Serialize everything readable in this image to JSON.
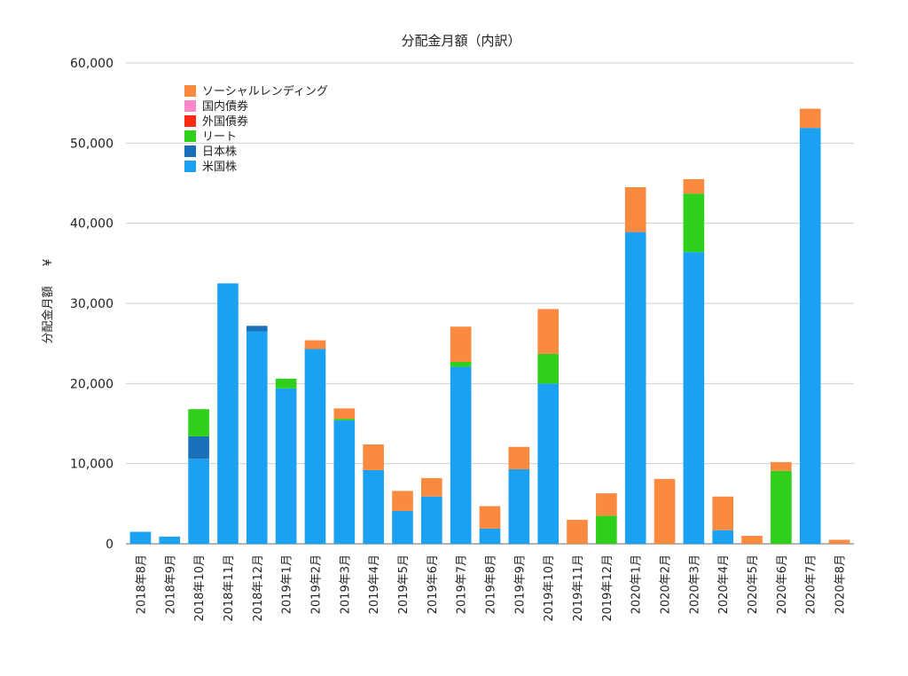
{
  "chart_data": {
    "type": "bar",
    "stacked": true,
    "title": "分配金月額（内訳）",
    "xlabel": "",
    "ylabel": "分配金月額",
    "yunit": "¥",
    "ylim": [
      0,
      60000
    ],
    "yticks": [
      "0",
      "10,000",
      "20,000",
      "30,000",
      "40,000",
      "50,000",
      "60,000"
    ],
    "ytick_values": [
      0,
      10000,
      20000,
      30000,
      40000,
      50000,
      60000
    ],
    "grid": true,
    "legend_position": "top-left",
    "categories": [
      "2018年8月",
      "2018年9月",
      "2018年10月",
      "2018年11月",
      "2018年12月",
      "2019年1月",
      "2019年2月",
      "2019年3月",
      "2019年4月",
      "2019年5月",
      "2019年6月",
      "2019年7月",
      "2019年8月",
      "2019年9月",
      "2019年10月",
      "2019年11月",
      "2019年12月",
      "2020年1月",
      "2020年2月",
      "2020年3月",
      "2020年4月",
      "2020年5月",
      "2020年6月",
      "2020年7月",
      "2020年8月"
    ],
    "series": [
      {
        "name": "米国株",
        "color": "#1ba1f2",
        "values": [
          1500,
          900,
          10600,
          32500,
          26500,
          19400,
          24300,
          15400,
          9200,
          4100,
          5900,
          22100,
          1900,
          9300,
          20000,
          0,
          0,
          38900,
          0,
          36400,
          1700,
          0,
          0,
          51900,
          0
        ]
      },
      {
        "name": "日本株",
        "color": "#1a70b8",
        "values": [
          0,
          0,
          2800,
          0,
          700,
          0,
          0,
          0,
          0,
          0,
          0,
          0,
          0,
          0,
          0,
          0,
          0,
          0,
          0,
          0,
          0,
          0,
          0,
          0,
          0
        ]
      },
      {
        "name": "リート",
        "color": "#2fd01b",
        "values": [
          0,
          0,
          3400,
          0,
          0,
          1200,
          0,
          200,
          0,
          0,
          0,
          600,
          0,
          0,
          3700,
          0,
          3500,
          0,
          0,
          7300,
          0,
          0,
          9100,
          0,
          0
        ]
      },
      {
        "name": "外国債券",
        "color": "#ff2a12",
        "values": [
          0,
          0,
          0,
          0,
          0,
          0,
          0,
          0,
          0,
          0,
          0,
          0,
          0,
          0,
          0,
          0,
          0,
          0,
          0,
          0,
          0,
          0,
          0,
          0,
          0
        ]
      },
      {
        "name": "国内債券",
        "color": "#ff86c8",
        "values": [
          0,
          0,
          0,
          0,
          0,
          0,
          0,
          0,
          0,
          0,
          0,
          0,
          0,
          0,
          0,
          0,
          0,
          0,
          0,
          0,
          0,
          0,
          0,
          0,
          0
        ]
      },
      {
        "name": "ソーシャルレンディング",
        "color": "#fa8a3f",
        "values": [
          0,
          0,
          0,
          0,
          0,
          0,
          1100,
          1300,
          3200,
          2500,
          2300,
          4400,
          2800,
          2800,
          5600,
          3000,
          2800,
          5600,
          8100,
          1800,
          4200,
          1000,
          1100,
          2400,
          500
        ]
      }
    ],
    "legend_order": [
      "ソーシャルレンディング",
      "国内債券",
      "外国債券",
      "リート",
      "日本株",
      "米国株"
    ]
  }
}
